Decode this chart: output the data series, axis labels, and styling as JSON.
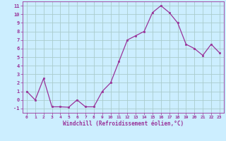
{
  "x": [
    0,
    1,
    2,
    3,
    4,
    5,
    6,
    7,
    8,
    9,
    10,
    11,
    12,
    13,
    14,
    15,
    16,
    17,
    18,
    19,
    20,
    21,
    22,
    23
  ],
  "y": [
    1.0,
    0.0,
    2.5,
    -0.8,
    -0.8,
    -0.85,
    0.0,
    -0.8,
    -0.8,
    1.0,
    2.0,
    4.5,
    7.0,
    7.5,
    8.0,
    10.2,
    11.0,
    10.2,
    9.0,
    6.5,
    6.0,
    5.2,
    6.5,
    5.5
  ],
  "line_color": "#993399",
  "marker": "s",
  "marker_size": 2,
  "bg_color": "#cceeff",
  "grid_color": "#aacccc",
  "xlabel": "Windchill (Refroidissement éolien,°C)",
  "tick_color": "#993399",
  "xlim": [
    -0.5,
    23.5
  ],
  "ylim": [
    -1.5,
    11.5
  ],
  "yticks": [
    -1,
    0,
    1,
    2,
    3,
    4,
    5,
    6,
    7,
    8,
    9,
    10,
    11
  ],
  "xticks": [
    0,
    1,
    2,
    3,
    4,
    5,
    6,
    7,
    8,
    9,
    10,
    11,
    12,
    13,
    14,
    15,
    16,
    17,
    18,
    19,
    20,
    21,
    22,
    23
  ]
}
